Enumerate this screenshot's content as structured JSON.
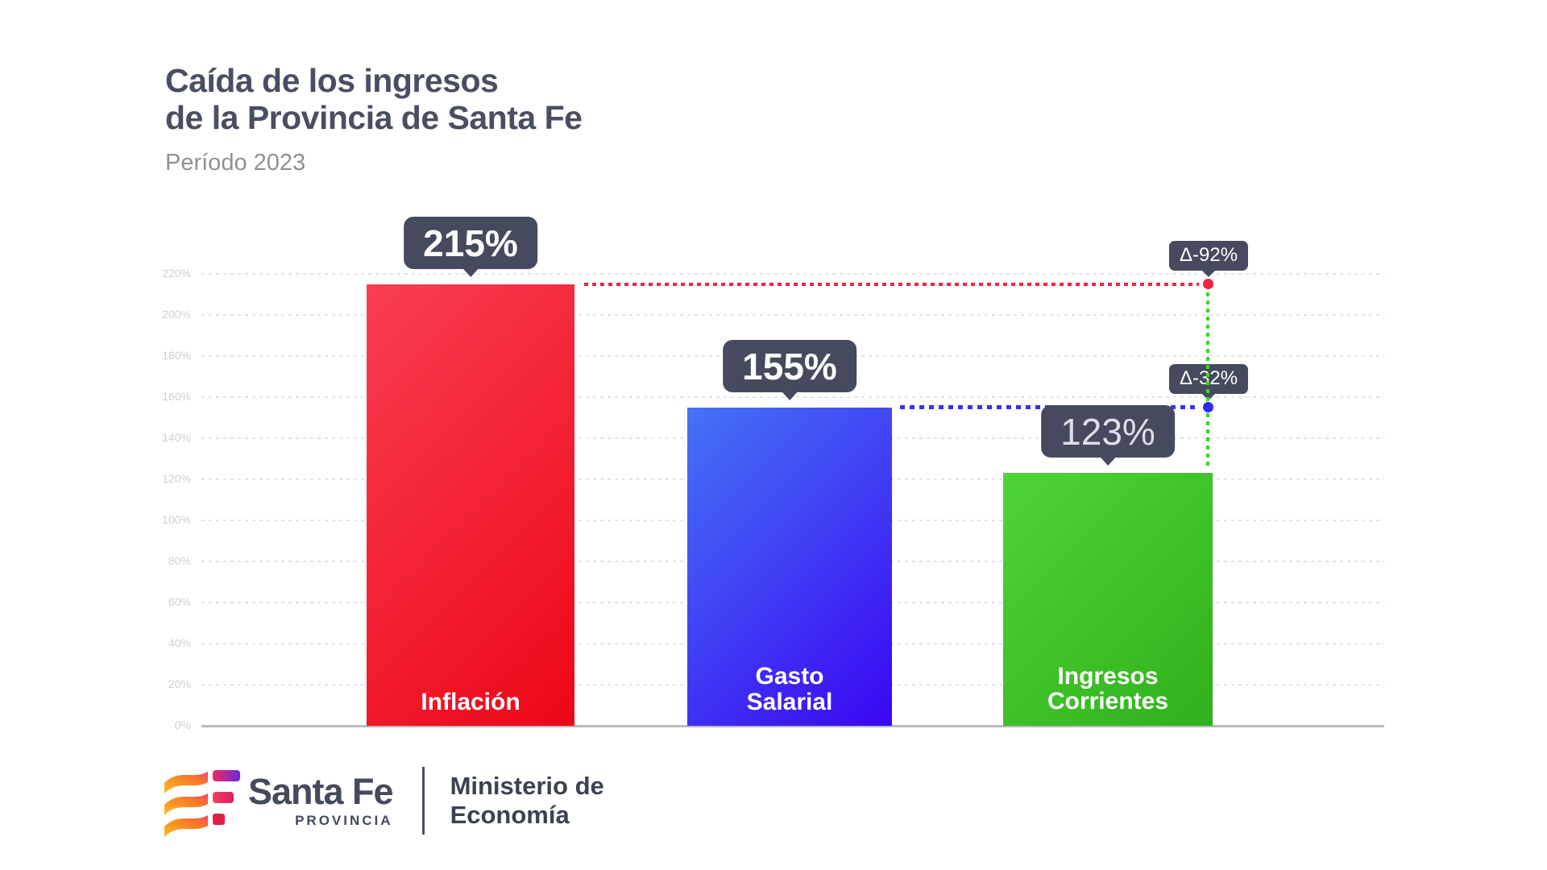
{
  "header": {
    "title_line1": "Caída de los ingresos",
    "title_line2": "de la Provincia de Santa Fe",
    "subtitle": "Período 2023"
  },
  "chart_data": {
    "type": "bar",
    "title": "Caída de los ingresos de la Provincia de Santa Fe",
    "subtitle": "Período 2023",
    "categories": [
      "Inflación",
      "Gasto Salarial",
      "Ingresos Corrientes"
    ],
    "values": [
      215,
      155,
      123
    ],
    "value_labels": [
      "215%",
      "155%",
      "123%"
    ],
    "bar_colors": [
      "#EC0617",
      "#3A06F3",
      "#30B01C"
    ],
    "ylim": [
      0,
      220
    ],
    "ytick_step": 20,
    "yticks": [
      "0%",
      "20%",
      "40%",
      "60%",
      "80%",
      "100%",
      "120%",
      "140%",
      "160%",
      "180%",
      "200%",
      "220%"
    ],
    "grid": "horizontal-dotted",
    "legend": "none",
    "annotations": [
      {
        "label": "Δ-92%",
        "at_value": 215,
        "connector_color": "#F3223E",
        "meaning": "gap between Inflación (215%) and Ingresos Corrientes (123%)"
      },
      {
        "label": "Δ-32%",
        "at_value": 155,
        "connector_color": "#3333F0",
        "meaning": "gap between Gasto Salarial (155%) and Ingresos Corrientes (123%)"
      }
    ]
  },
  "footer": {
    "brand": "Santa Fe",
    "brand_sub": "PROVINCIA",
    "ministry_line1": "Ministerio de",
    "ministry_line2": "Economía"
  },
  "colors": {
    "title": "#4A4E63",
    "subtitle": "#8E9095",
    "badge_bg": "#454A5E",
    "bar_red": "#EC0617",
    "bar_blue": "#3A06F3",
    "bar_green": "#30B01C",
    "axis_labels": "#CDCED6"
  }
}
